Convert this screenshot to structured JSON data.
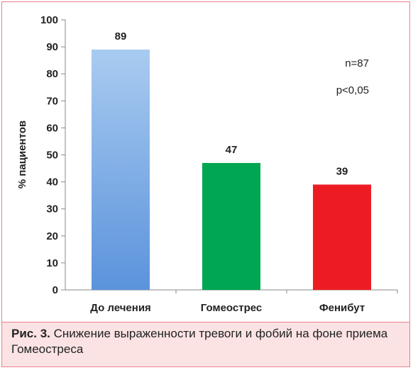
{
  "chart_data": {
    "type": "bar",
    "categories": [
      "До лечения",
      "Гомеострес",
      "Фенибут"
    ],
    "values": [
      89,
      47,
      39
    ],
    "data_labels": [
      "89",
      "47",
      "39"
    ],
    "bar_colors": [
      "#5b93dc",
      "#00a651",
      "#ed1c24"
    ],
    "ylabel": "% пациентов",
    "ylim": [
      0,
      100
    ],
    "yticks": [
      "0",
      "10",
      "20",
      "30",
      "40",
      "50",
      "60",
      "70",
      "80",
      "90",
      "100"
    ],
    "annotations": [
      "n=87",
      "p<0,05"
    ],
    "grid": false
  },
  "caption": {
    "figure_label": "Рис. 3.",
    "text": " Снижение выраженности тревоги и фобий на фоне приема Гомеостреса"
  }
}
